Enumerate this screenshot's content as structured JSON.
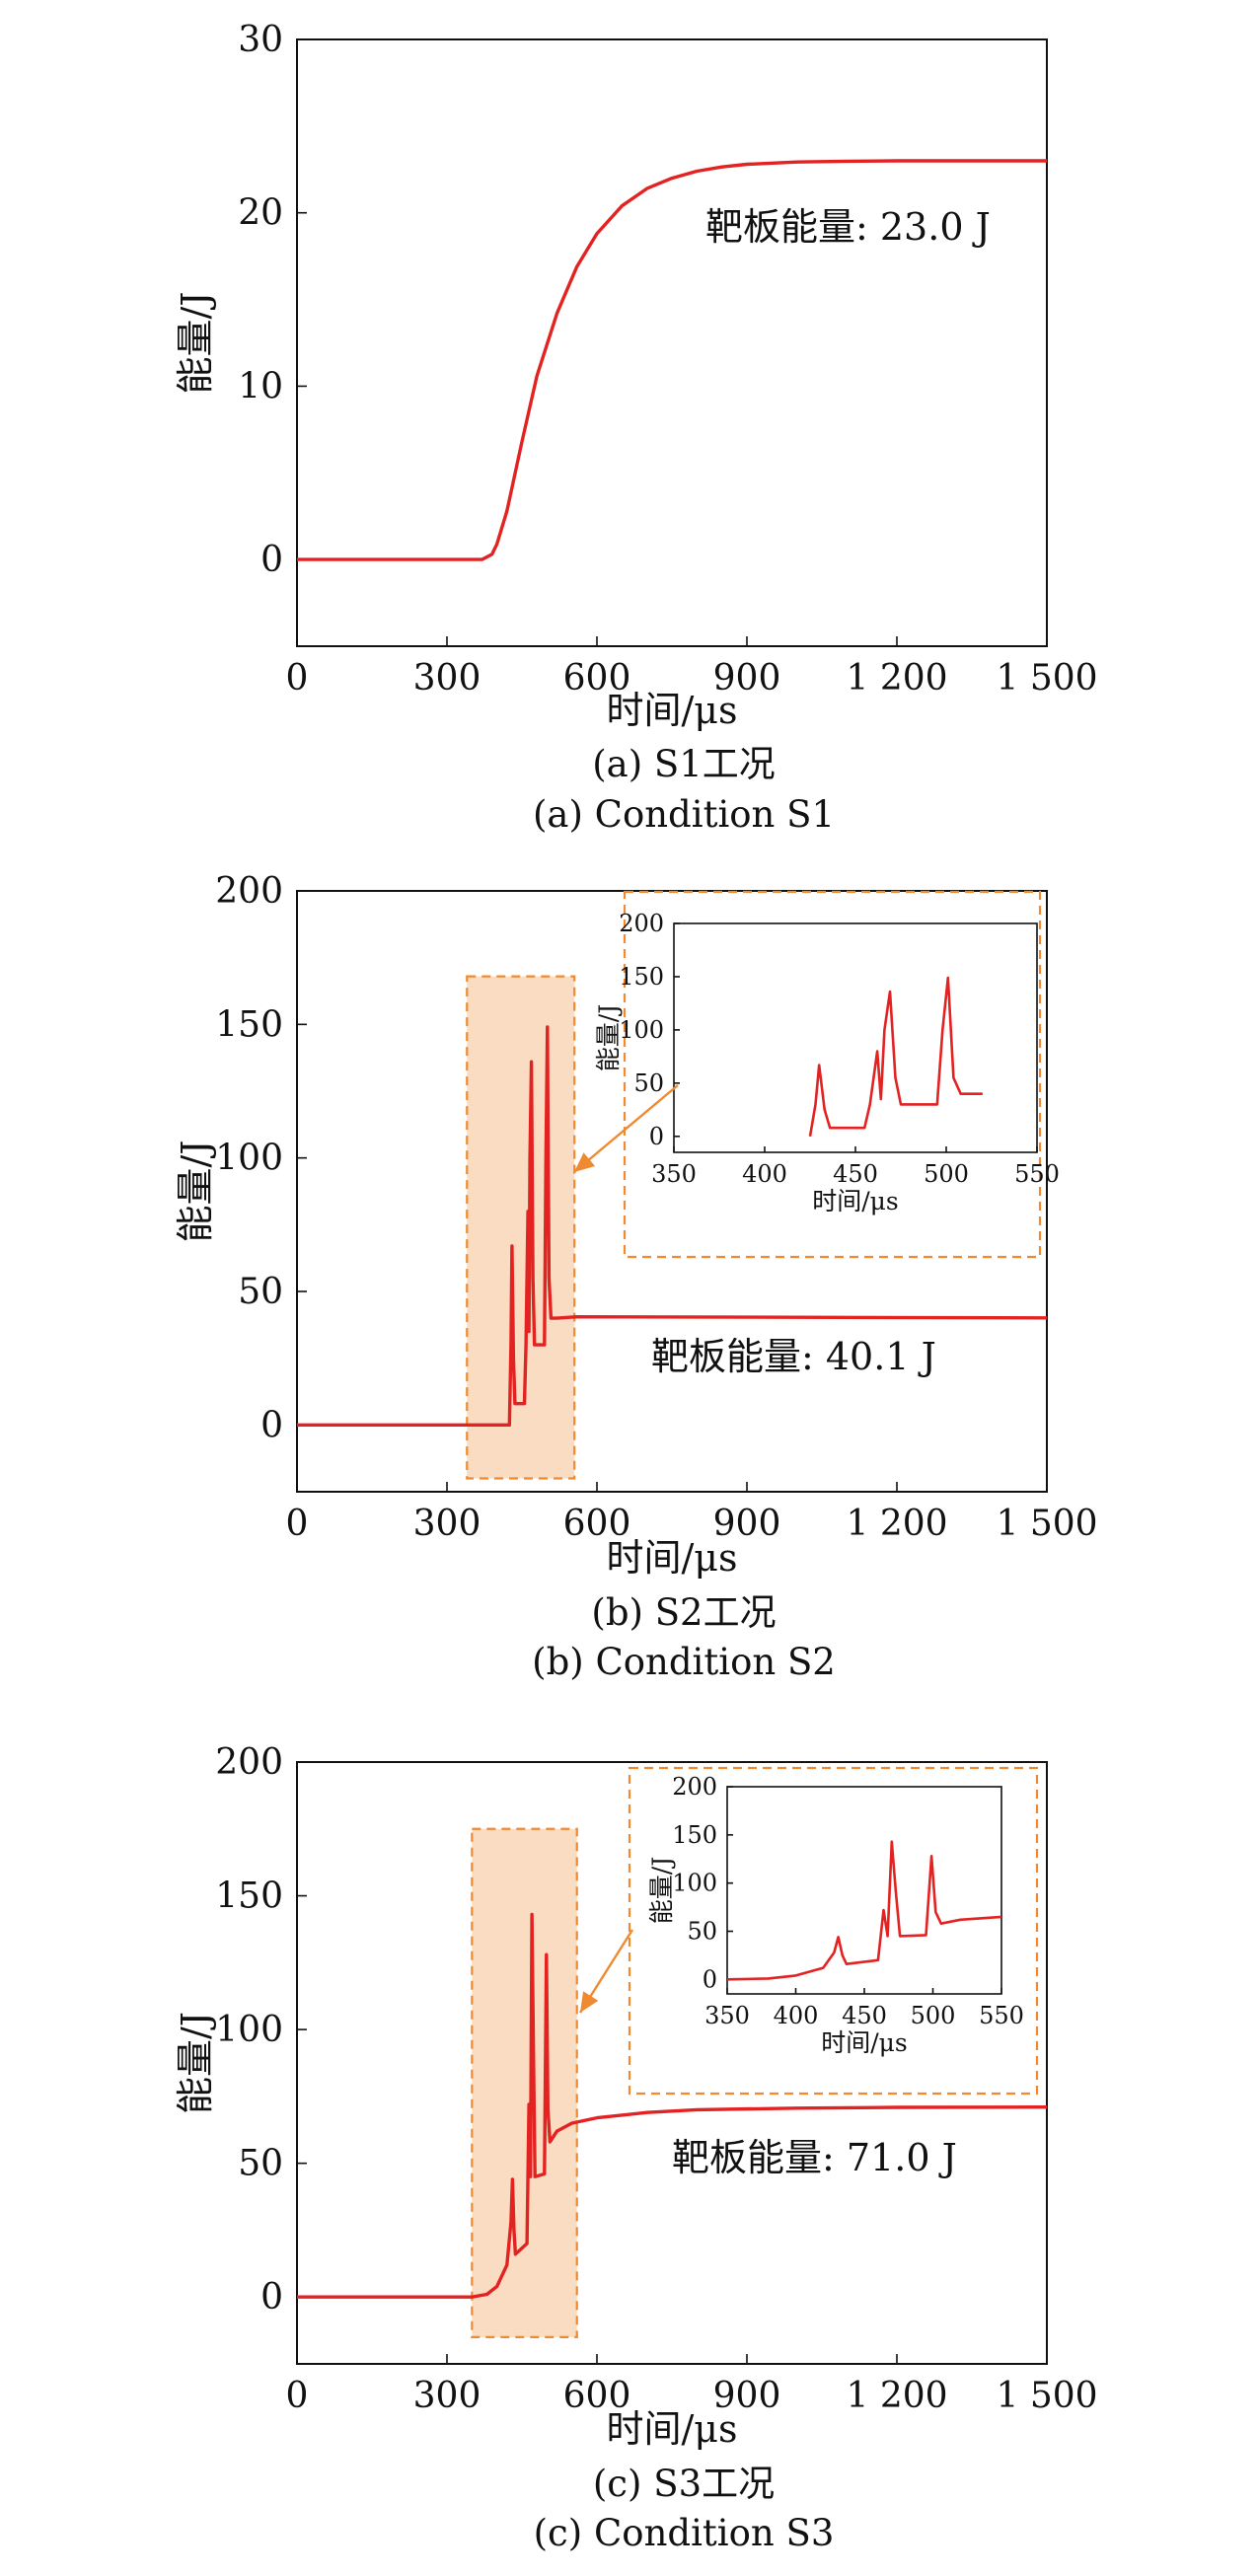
{
  "chart_data": [
    {
      "type": "line",
      "xlabel": "时间/μs",
      "ylabel": "能量/J",
      "xlim": [
        0,
        1500
      ],
      "ylim": [
        -5,
        30
      ],
      "xticks": [
        "0",
        "300",
        "600",
        "900",
        "1 200",
        "1 500"
      ],
      "yticks": [
        "0",
        "10",
        "20",
        "30"
      ],
      "annotation": "靶板能量: 23.0 J",
      "caption_cn": "(a) S1工况",
      "caption_en": "(a) Condition S1",
      "line_color": "#e32222",
      "series": [
        {
          "x": [
            0,
            370,
            390,
            400,
            420,
            450,
            480,
            520,
            560,
            600,
            650,
            700,
            750,
            800,
            850,
            900,
            1000,
            1100,
            1200,
            1300,
            1400,
            1500
          ],
          "y": [
            0,
            0,
            0.3,
            0.9,
            2.8,
            6.8,
            10.6,
            14.2,
            16.9,
            18.8,
            20.4,
            21.4,
            22.0,
            22.4,
            22.65,
            22.8,
            22.93,
            22.98,
            23.0,
            23.0,
            23.0,
            23.0
          ]
        }
      ]
    },
    {
      "type": "line",
      "xlabel": "时间/μs",
      "ylabel": "能量/J",
      "xlim": [
        0,
        1500
      ],
      "ylim": [
        -25,
        200
      ],
      "xticks": [
        "0",
        "300",
        "600",
        "900",
        "1 200",
        "1 500"
      ],
      "yticks": [
        "0",
        "50",
        "100",
        "150",
        "200"
      ],
      "annotation": "靶板能量: 40.1 J",
      "caption_cn": "(b) S2工况",
      "caption_en": "(b) Condition S2",
      "line_color": "#e32222",
      "highlight_range": {
        "x": [
          340,
          555
        ],
        "y": [
          -20,
          168
        ]
      },
      "series": [
        {
          "x": [
            0,
            425,
            428,
            430,
            433,
            436,
            455,
            458,
            462,
            464,
            466,
            469,
            472,
            475,
            495,
            498,
            501,
            504,
            508,
            520,
            560,
            1500
          ],
          "y": [
            0,
            0,
            30,
            67,
            25,
            8,
            8,
            30,
            80,
            35,
            100,
            136,
            55,
            30,
            30,
            100,
            149,
            55,
            40,
            40,
            40.5,
            40.1
          ]
        }
      ],
      "inset": {
        "xlabel": "时间/μs",
        "ylabel": "能量/J",
        "xlim": [
          350,
          550
        ],
        "ylim": [
          -15,
          200
        ],
        "xticks": [
          "350",
          "400",
          "450",
          "500",
          "550"
        ],
        "yticks": [
          "0",
          "50",
          "100",
          "150",
          "200"
        ]
      }
    },
    {
      "type": "line",
      "xlabel": "时间/μs",
      "ylabel": "能量/J",
      "xlim": [
        0,
        1500
      ],
      "ylim": [
        -25,
        200
      ],
      "xticks": [
        "0",
        "300",
        "600",
        "900",
        "1 200",
        "1 500"
      ],
      "yticks": [
        "0",
        "50",
        "100",
        "150",
        "200"
      ],
      "annotation": "靶板能量: 71.0 J",
      "caption_cn": "(c) S3工况",
      "caption_en": "(c) Condition S3",
      "line_color": "#e32222",
      "highlight_range": {
        "x": [
          350,
          560
        ],
        "y": [
          -15,
          175
        ]
      },
      "series": [
        {
          "x": [
            0,
            350,
            380,
            400,
            420,
            428,
            431,
            434,
            437,
            460,
            464,
            467,
            470,
            473,
            476,
            495,
            499,
            502,
            506,
            520,
            550,
            600,
            700,
            800,
            1000,
            1200,
            1500
          ],
          "y": [
            0,
            0,
            1,
            4,
            12,
            28,
            44,
            25,
            16,
            20,
            72,
            45,
            143,
            90,
            45,
            46,
            128,
            70,
            58,
            62,
            65,
            67,
            69,
            70,
            70.6,
            70.9,
            71.0
          ]
        }
      ],
      "inset": {
        "xlabel": "时间/μs",
        "ylabel": "能量/J",
        "xlim": [
          350,
          550
        ],
        "ylim": [
          -15,
          200
        ],
        "xticks": [
          "350",
          "400",
          "450",
          "500",
          "550"
        ],
        "yticks": [
          "0",
          "50",
          "100",
          "150",
          "200"
        ]
      }
    }
  ]
}
